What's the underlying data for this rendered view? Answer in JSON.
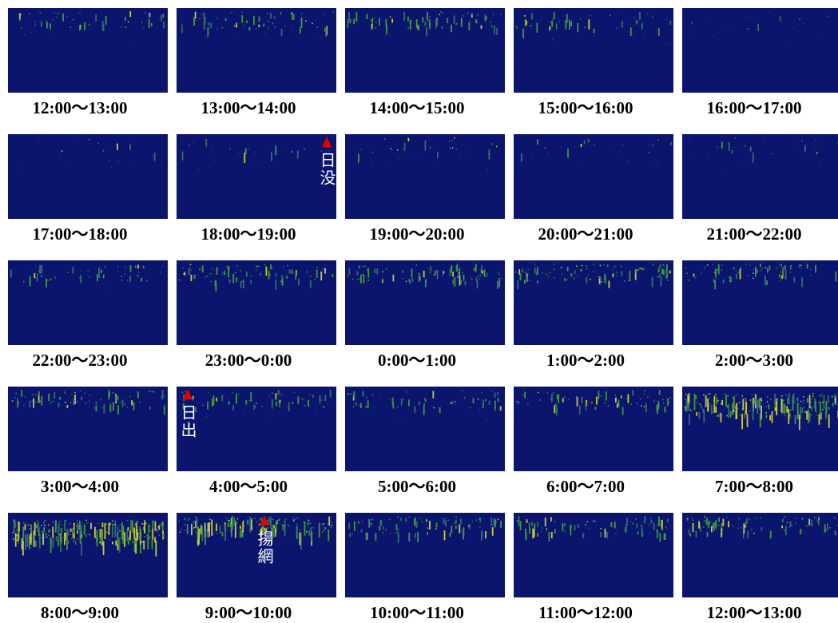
{
  "panels": [
    {
      "label": "12:00〜13:00"
    },
    {
      "label": "13:00〜14:00"
    },
    {
      "label": "14:00〜15:00"
    },
    {
      "label": "15:00〜16:00"
    },
    {
      "label": "16:00〜17:00"
    },
    {
      "label": "17:00〜18:00"
    },
    {
      "label": "18:00〜19:00",
      "marker": "日没"
    },
    {
      "label": "19:00〜20:00"
    },
    {
      "label": "20:00〜21:00"
    },
    {
      "label": "21:00〜22:00"
    },
    {
      "label": "22:00〜23:00"
    },
    {
      "label": "23:00〜0:00"
    },
    {
      "label": "0:00〜1:00"
    },
    {
      "label": "1:00〜2:00"
    },
    {
      "label": "2:00〜3:00"
    },
    {
      "label": "3:00〜4:00"
    },
    {
      "label": "4:00〜5:00",
      "marker": "日出"
    },
    {
      "label": "5:00〜6:00"
    },
    {
      "label": "6:00〜7:00"
    },
    {
      "label": "7:00〜8:00"
    },
    {
      "label": "8:00〜9:00"
    },
    {
      "label": "9:00〜10:00",
      "marker": "揚網"
    },
    {
      "label": "10:00〜11:00"
    },
    {
      "label": "11:00〜12:00"
    },
    {
      "label": "12:00〜13:00"
    }
  ]
}
